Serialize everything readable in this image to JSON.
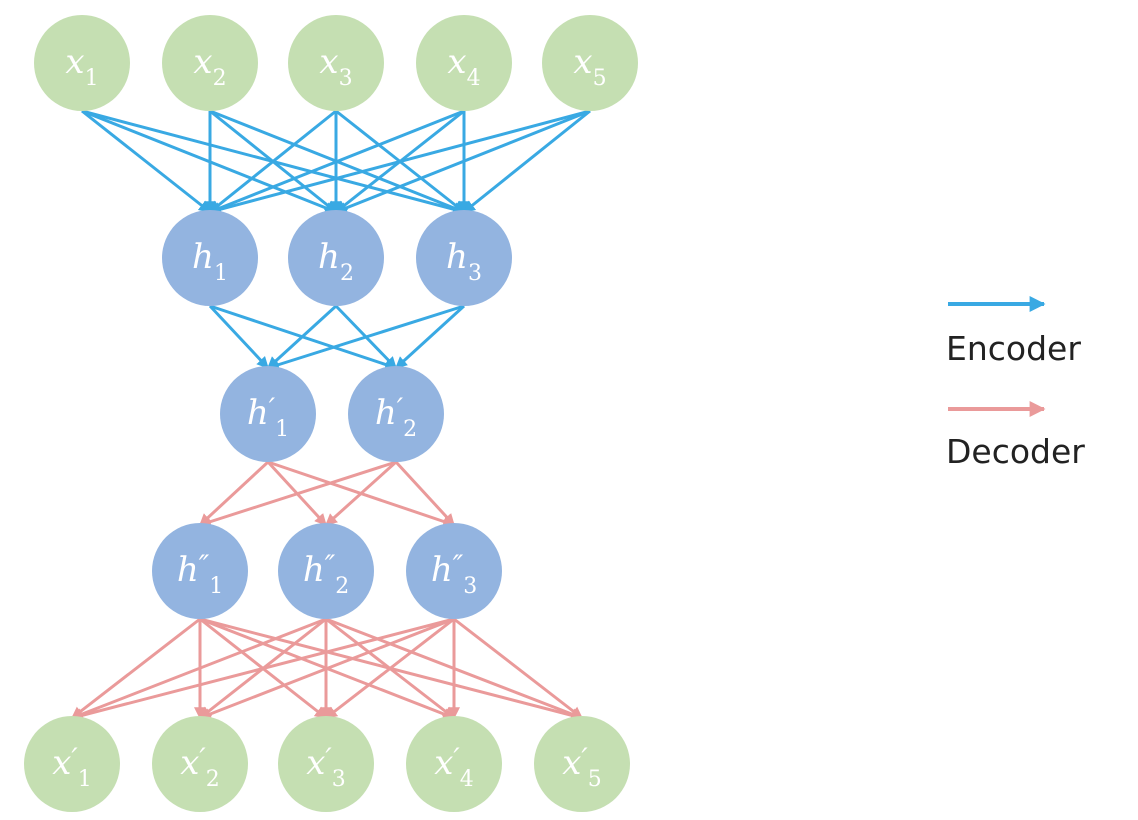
{
  "colors": {
    "input_node": "#c5dfb2",
    "hidden_node": "#93b4e0",
    "encoder_edge": "#39a9e3",
    "decoder_edge": "#ea9a9a",
    "label": "#ffffff"
  },
  "layers": [
    {
      "id": "input",
      "kind": "input",
      "nodes": [
        {
          "base": "x",
          "prime": "",
          "sub": "1"
        },
        {
          "base": "x",
          "prime": "",
          "sub": "2"
        },
        {
          "base": "x",
          "prime": "",
          "sub": "3"
        },
        {
          "base": "x",
          "prime": "",
          "sub": "4"
        },
        {
          "base": "x",
          "prime": "",
          "sub": "5"
        }
      ]
    },
    {
      "id": "hidden1",
      "kind": "hidden",
      "nodes": [
        {
          "base": "h",
          "prime": "",
          "sub": "1"
        },
        {
          "base": "h",
          "prime": "",
          "sub": "2"
        },
        {
          "base": "h",
          "prime": "",
          "sub": "3"
        }
      ]
    },
    {
      "id": "code",
      "kind": "hidden",
      "nodes": [
        {
          "base": "h",
          "prime": "′",
          "sub": "1"
        },
        {
          "base": "h",
          "prime": "′",
          "sub": "2"
        }
      ]
    },
    {
      "id": "hidden2",
      "kind": "hidden",
      "nodes": [
        {
          "base": "h",
          "prime": "″",
          "sub": "1"
        },
        {
          "base": "h",
          "prime": "″",
          "sub": "2"
        },
        {
          "base": "h",
          "prime": "″",
          "sub": "3"
        }
      ]
    },
    {
      "id": "output",
      "kind": "input",
      "nodes": [
        {
          "base": "x",
          "prime": "′",
          "sub": "1"
        },
        {
          "base": "x",
          "prime": "′",
          "sub": "2"
        },
        {
          "base": "x",
          "prime": "′",
          "sub": "3"
        },
        {
          "base": "x",
          "prime": "′",
          "sub": "4"
        },
        {
          "base": "x",
          "prime": "′",
          "sub": "5"
        }
      ]
    }
  ],
  "connections": [
    {
      "from": "input",
      "to": "hidden1",
      "type": "encoder"
    },
    {
      "from": "hidden1",
      "to": "code",
      "type": "encoder"
    },
    {
      "from": "code",
      "to": "hidden2",
      "type": "decoder"
    },
    {
      "from": "hidden2",
      "to": "output",
      "type": "decoder"
    }
  ],
  "legend": {
    "encoder_label": "Encoder",
    "decoder_label": "Decoder"
  }
}
